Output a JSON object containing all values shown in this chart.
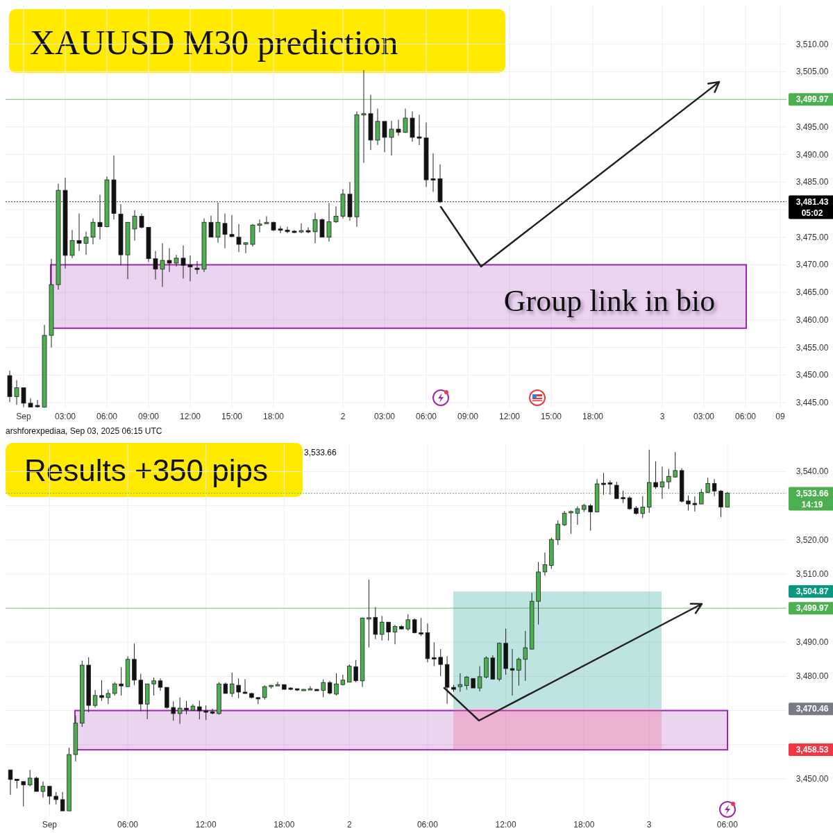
{
  "chart_data": [
    {
      "type": "candlestick",
      "title": "XAUUSD M30 prediction",
      "grid": true,
      "colors": [
        "#111111",
        "#4caf50",
        "#111111",
        "#111111",
        "#111111",
        "#4caf50",
        "#4caf50",
        "#4caf50",
        "#111111",
        "#4caf50",
        "#111111",
        "#4caf50",
        "#4caf50",
        "#111111",
        "#4caf50",
        "#111111",
        "#111111",
        "#4caf50",
        "#4caf50",
        "#111111",
        "#111111",
        "#111111",
        "#4caf50",
        "#111111",
        "#4caf50",
        "#111111",
        "#111111",
        "#111111",
        "#4caf50",
        "#111111",
        "#4caf50",
        "#111111",
        "#111111",
        "#111111",
        "#4caf50",
        "#4caf50",
        "#4caf50",
        "#4caf50",
        "#111111",
        "#111111",
        "#111111",
        "#111111",
        "#4caf50",
        "#111111",
        "#4caf50",
        "#111111",
        "#4caf50",
        "#4caf50",
        "#4caf50",
        "#111111",
        "#4caf50",
        "#4caf50",
        "#111111",
        "#4caf50",
        "#111111",
        "#4caf50",
        "#111111",
        "#4caf50",
        "#111111",
        "#111111",
        "#111111",
        "#111111",
        "#111111",
        null,
        null,
        null,
        null,
        null,
        null,
        null,
        null,
        null,
        null,
        null,
        null,
        null,
        null,
        null,
        null,
        null,
        null,
        null,
        null,
        null,
        null,
        null,
        null,
        null,
        null,
        null,
        null,
        null,
        null,
        null,
        null,
        null,
        null,
        null,
        null,
        null,
        null,
        null,
        null,
        null,
        null,
        null,
        null,
        null,
        null,
        null,
        null,
        null
      ],
      "categories": [
        null,
        null,
        "Sep",
        null,
        null,
        null,
        null,
        null,
        "03:00",
        null,
        null,
        null,
        null,
        null,
        "06:00",
        null,
        null,
        null,
        null,
        null,
        "09:00",
        null,
        null,
        null,
        null,
        null,
        "12:00",
        null,
        null,
        null,
        null,
        null,
        "15:00",
        null,
        null,
        null,
        null,
        null,
        "18:00",
        null,
        null,
        null,
        null,
        null,
        null,
        null,
        null,
        null,
        "2",
        null,
        null,
        null,
        null,
        null,
        "03:00",
        null,
        null,
        null,
        null,
        null,
        "06:00",
        null,
        null,
        null,
        null,
        null,
        "09:00",
        null,
        null,
        null,
        null,
        null,
        "12:00",
        null,
        null,
        null,
        null,
        null,
        "15:00",
        null,
        null,
        null,
        null,
        null,
        "18:00",
        null,
        null,
        null,
        null,
        null,
        null,
        null,
        null,
        null,
        "3",
        null,
        null,
        null,
        null,
        null,
        "03:00",
        null,
        null,
        null,
        null,
        null,
        "06:00",
        null,
        null,
        null,
        null,
        "09"
      ],
      "ohlc": [
        [
          3449.9,
          3450.8,
          3445.1,
          3446.1
        ],
        [
          3446.1,
          3449.1,
          3444.6,
          3447.7
        ],
        [
          3447.7,
          3447.7,
          3444.2,
          3444.9
        ],
        [
          3444.9,
          3445.8,
          3444.2,
          3444.2
        ],
        [
          3444.5,
          3445.5,
          3444.1,
          3444.4
        ],
        [
          3444.2,
          3459.1,
          3444.1,
          3457.2
        ],
        [
          3457.2,
          3471.1,
          3455.0,
          3466.4
        ],
        [
          3466.4,
          3484.7,
          3465.5,
          3483.5
        ],
        [
          3483.5,
          3485.8,
          3469.3,
          3471.7
        ],
        [
          3471.7,
          3476.3,
          3471.2,
          3474.4
        ],
        [
          3474.4,
          3479.3,
          3472.5,
          3473.9
        ],
        [
          3473.9,
          3476.0,
          3471.8,
          3475.0
        ],
        [
          3475.0,
          3478.4,
          3473.7,
          3477.7
        ],
        [
          3477.7,
          3482.7,
          3474.6,
          3476.9
        ],
        [
          3476.9,
          3486.0,
          3476.8,
          3485.4
        ],
        [
          3485.4,
          3489.8,
          3478.2,
          3479.3
        ],
        [
          3479.2,
          3481.0,
          3469.9,
          3471.8
        ],
        [
          3471.8,
          3477.7,
          3467.4,
          3477.7
        ],
        [
          3476.5,
          3479.9,
          3474.4,
          3478.8
        ],
        [
          3478.8,
          3479.3,
          3476.6,
          3476.8
        ],
        [
          3476.8,
          3476.8,
          3470.5,
          3471.1
        ],
        [
          3471.1,
          3472.5,
          3467.3,
          3469.2
        ],
        [
          3469.2,
          3473.9,
          3466.0,
          3470.8
        ],
        [
          3470.8,
          3473.0,
          3468.7,
          3470.3
        ],
        [
          3470.3,
          3471.8,
          3469.7,
          3471.2
        ],
        [
          3471.2,
          3473.5,
          3467.5,
          3469.9
        ],
        [
          3470.0,
          3471.7,
          3467.0,
          3469.6
        ],
        [
          3469.4,
          3470.7,
          3468.3,
          3469.2
        ],
        [
          3469.2,
          3478.4,
          3468.7,
          3477.7
        ],
        [
          3477.7,
          3478.9,
          3475.0,
          3475.0
        ],
        [
          3475.0,
          3481.3,
          3474.0,
          3477.7
        ],
        [
          3477.5,
          3479.3,
          3473.0,
          3475.5
        ],
        [
          3475.5,
          3479.0,
          3475.0,
          3475.1
        ],
        [
          3475.0,
          3477.4,
          3472.3,
          3473.7
        ],
        [
          3473.7,
          3474.0,
          3472.1,
          3474.0
        ],
        [
          3473.7,
          3477.4,
          3473.3,
          3477.2
        ],
        [
          3477.2,
          3478.2,
          3475.9,
          3477.4
        ],
        [
          3477.5,
          3478.8,
          3477.4,
          3477.7
        ],
        [
          3477.7,
          3477.8,
          3476.1,
          3476.3
        ],
        [
          3476.5,
          3477.0,
          3475.7,
          3476.3
        ],
        [
          3476.3,
          3476.9,
          3475.7,
          3476.0
        ],
        [
          3476.1,
          3476.3,
          3475.7,
          3476.0
        ],
        [
          3476.1,
          3477.5,
          3475.7,
          3476.2
        ],
        [
          3476.2,
          3476.8,
          3475.7,
          3476.0
        ],
        [
          3476.0,
          3479.4,
          3473.9,
          3478.2
        ],
        [
          3478.2,
          3478.4,
          3475.0,
          3475.0
        ],
        [
          3475.0,
          3481.2,
          3474.2,
          3477.8
        ],
        [
          3477.8,
          3480.6,
          3477.6,
          3478.8
        ],
        [
          3478.8,
          3483.7,
          3478.4,
          3482.8
        ],
        [
          3482.8,
          3485.0,
          3478.0,
          3478.7
        ],
        [
          3478.7,
          3497.8,
          3476.9,
          3497.2
        ],
        [
          3497.2,
          3505.3,
          3488.5,
          3497.4
        ],
        [
          3497.4,
          3500.8,
          3490.8,
          3492.6
        ],
        [
          3492.6,
          3498.3,
          3491.7,
          3496.0
        ],
        [
          3496.0,
          3496.0,
          3490.4,
          3493.1
        ],
        [
          3493.1,
          3496.1,
          3489.8,
          3494.6
        ],
        [
          3494.6,
          3496.3,
          3493.4,
          3494.0
        ],
        [
          3494.0,
          3498.3,
          3493.9,
          3496.6
        ],
        [
          3496.6,
          3497.8,
          3492.3,
          3493.1
        ],
        [
          3493.2,
          3497.2,
          3491.7,
          3493.0
        ],
        [
          3493.0,
          3495.8,
          3484.1,
          3485.4
        ],
        [
          3485.6,
          3490.2,
          3483.2,
          3485.5
        ],
        [
          3485.6,
          3488.2,
          3481.2,
          3481.4
        ],
        null,
        null,
        null,
        null,
        null,
        null,
        null,
        null,
        null,
        null,
        null,
        null,
        null,
        null,
        null,
        null,
        null,
        null,
        null,
        null,
        null,
        null,
        null,
        null,
        null,
        null,
        null,
        null,
        null,
        null,
        null,
        null,
        null,
        null,
        null,
        null,
        null,
        null,
        null,
        null,
        null,
        null,
        null,
        null,
        null,
        null,
        null,
        null,
        null
      ],
      "ylim": [
        3444,
        3517
      ],
      "yticks": [
        {
          "value": 3445,
          "label": "3,445.00"
        },
        {
          "value": 3450,
          "label": "3,450.00"
        },
        {
          "value": 3455,
          "label": "3,455.00"
        },
        {
          "value": 3460,
          "label": "3,460.00"
        },
        {
          "value": 3465,
          "label": "3,465.00"
        },
        {
          "value": 3470,
          "label": "3,470.00"
        },
        {
          "value": 3475,
          "label": "3,475.00"
        },
        {
          "value": 3480,
          "label": null
        },
        {
          "value": 3485,
          "label": "3,485.00"
        },
        {
          "value": 3490,
          "label": "3,490.00"
        },
        {
          "value": 3495,
          "label": "3,495.00"
        },
        {
          "value": 3500,
          "label": null
        },
        {
          "value": 3505,
          "label": "3,505.00"
        },
        {
          "value": 3510,
          "label": "3,510.00"
        }
      ],
      "ref_lines": [
        {
          "axis": "y",
          "value": 3499.97,
          "label": "3,499.97",
          "color": "#4caf50"
        },
        {
          "axis": "y",
          "value": 3481.43,
          "label": "3,481.43\n05:02",
          "color": "#000000",
          "line_style": "dotted"
        }
      ],
      "bands": [
        {
          "axis": "y",
          "from": 3458.5,
          "to": 3470,
          "color": "#9c27b0"
        }
      ],
      "annotations": [
        "Group link in bio",
        "arshforexpediaa, Sep 03, 2025 06:15 UTC"
      ]
    },
    {
      "type": "candlestick",
      "title": "Results +350 pips",
      "grid": true,
      "colors": [
        "#111111",
        "#111111",
        "#111111",
        "#4caf50",
        "#111111",
        "#4caf50",
        "#111111",
        "#111111",
        "#111111",
        "#4caf50",
        "#4caf50",
        "#4caf50",
        "#111111",
        "#4caf50",
        "#111111",
        "#4caf50",
        "#4caf50",
        "#111111",
        "#4caf50",
        "#111111",
        "#111111",
        "#4caf50",
        "#4caf50",
        "#111111",
        "#111111",
        "#111111",
        "#4caf50",
        "#111111",
        "#4caf50",
        "#111111",
        "#111111",
        "#111111",
        "#4caf50",
        "#111111",
        "#4caf50",
        "#111111",
        "#111111",
        "#111111",
        "#111111",
        "#4caf50",
        "#4caf50",
        "#4caf50",
        "#111111",
        "#111111",
        "#111111",
        "#4caf50",
        "#4caf50",
        "#111111",
        "#4caf50",
        "#111111",
        "#4caf50",
        "#4caf50",
        "#4caf50",
        "#111111",
        "#4caf50",
        "#4caf50",
        "#111111",
        "#4caf50",
        "#111111",
        "#4caf50",
        "#111111",
        "#4caf50",
        "#111111",
        "#111111",
        "#111111",
        "#111111",
        "#111111",
        "#111111",
        "#111111",
        "#4caf50",
        "#4caf50",
        "#111111",
        "#4caf50",
        "#4caf50",
        "#111111",
        "#4caf50",
        "#111111",
        "#111111",
        "#4caf50",
        "#4caf50",
        "#4caf50",
        "#4caf50",
        "#4caf50",
        "#4caf50",
        "#4caf50",
        "#4caf50",
        "#4caf50",
        "#4caf50",
        "#4caf50",
        "#111111",
        "#4caf50",
        "#111111",
        "#111111",
        "#111111",
        "#111111",
        "#111111",
        "#111111",
        "#4caf50",
        "#4caf50",
        "#111111",
        "#4caf50",
        "#4caf50",
        "#4caf50",
        "#111111",
        "#111111",
        "#111111",
        "#4caf50",
        "#4caf50",
        "#111111",
        "#111111",
        "#4caf50",
        null,
        null,
        null,
        null,
        null,
        null,
        null,
        null
      ],
      "categories": [
        null,
        null,
        null,
        null,
        null,
        null,
        "Sep",
        null,
        null,
        null,
        null,
        null,
        null,
        null,
        null,
        null,
        null,
        null,
        "06:00",
        null,
        null,
        null,
        null,
        null,
        null,
        null,
        null,
        null,
        null,
        null,
        "12:00",
        null,
        null,
        null,
        null,
        null,
        null,
        null,
        null,
        null,
        null,
        null,
        "18:00",
        null,
        null,
        null,
        null,
        null,
        null,
        null,
        null,
        null,
        "2",
        null,
        null,
        null,
        null,
        null,
        null,
        null,
        null,
        null,
        null,
        null,
        "06:00",
        null,
        null,
        null,
        null,
        null,
        null,
        null,
        null,
        null,
        null,
        null,
        "12:00",
        null,
        null,
        null,
        null,
        null,
        null,
        null,
        null,
        null,
        null,
        null,
        "18:00",
        null,
        null,
        null,
        null,
        null,
        null,
        null,
        null,
        null,
        "3",
        null,
        null,
        null,
        null,
        null,
        null,
        null,
        null,
        null,
        null,
        null,
        "06:00",
        null,
        null,
        null,
        null,
        null,
        null,
        null,
        null
      ],
      "ohlc": [
        [
          3452.6,
          3452.6,
          3445.3,
          3449.8
        ],
        [
          3449.9,
          3449.9,
          3447.2,
          3449.6
        ],
        [
          3449.2,
          3449.2,
          3441.9,
          3448.2
        ],
        [
          3448.2,
          3452.6,
          3447.8,
          3450.2
        ],
        [
          3450.2,
          3450.6,
          3446.3,
          3446.3
        ],
        [
          3446.3,
          3449.2,
          3444.5,
          3447.8
        ],
        [
          3447.8,
          3447.8,
          3442.5,
          3444.9
        ],
        [
          3444.9,
          3446.1,
          3442.5,
          3443.9
        ],
        [
          3443.9,
          3446.1,
          3440.6,
          3440.6
        ],
        [
          3440.6,
          3459.1,
          3440.6,
          3457.1
        ],
        [
          3457.1,
          3468.5,
          3455.1,
          3466.3
        ],
        [
          3466.3,
          3484.6,
          3465.2,
          3483.3
        ],
        [
          3483.3,
          3485.6,
          3469.5,
          3471.5
        ],
        [
          3471.5,
          3476.0,
          3470.9,
          3474.4
        ],
        [
          3474.4,
          3478.9,
          3472.8,
          3473.8
        ],
        [
          3473.8,
          3476.1,
          3471.9,
          3475.0
        ],
        [
          3475.0,
          3478.3,
          3474.4,
          3477.8
        ],
        [
          3477.8,
          3482.7,
          3474.4,
          3477.2
        ],
        [
          3477.0,
          3485.9,
          3477.0,
          3485.0
        ],
        [
          3485.0,
          3489.6,
          3477.4,
          3478.9
        ],
        [
          3478.9,
          3480.8,
          3469.8,
          3471.9
        ],
        [
          3471.9,
          3477.8,
          3467.5,
          3477.8
        ],
        [
          3477.8,
          3479.7,
          3474.4,
          3478.7
        ],
        [
          3478.7,
          3479.4,
          3475.8,
          3476.8
        ],
        [
          3476.8,
          3476.8,
          3470.5,
          3470.9
        ],
        [
          3470.9,
          3472.7,
          3467.0,
          3469.1
        ],
        [
          3469.1,
          3473.8,
          3466.1,
          3470.7
        ],
        [
          3470.7,
          3472.8,
          3468.9,
          3470.2
        ],
        [
          3470.1,
          3471.9,
          3469.9,
          3471.3
        ],
        [
          3471.1,
          3472.9,
          3467.4,
          3469.9
        ],
        [
          3469.9,
          3471.5,
          3467.2,
          3469.6
        ],
        [
          3469.6,
          3470.5,
          3468.9,
          3469.3
        ],
        [
          3469.1,
          3478.3,
          3468.8,
          3477.8
        ],
        [
          3477.8,
          3478.2,
          3475.0,
          3475.0
        ],
        [
          3475.0,
          3481.1,
          3474.0,
          3477.8
        ],
        [
          3477.4,
          3479.4,
          3473.6,
          3475.4
        ],
        [
          3475.4,
          3479.2,
          3474.9,
          3475.1
        ],
        [
          3475.0,
          3475.2,
          3473.6,
          3473.8
        ],
        [
          3473.8,
          3473.8,
          3471.9,
          3473.7
        ],
        [
          3473.8,
          3477.4,
          3473.2,
          3477.0
        ],
        [
          3477.3,
          3477.5,
          3476.4,
          3477.4
        ],
        [
          3477.6,
          3478.4,
          3477.3,
          3477.6
        ],
        [
          3477.6,
          3477.6,
          3476.2,
          3476.2
        ],
        [
          3476.6,
          3476.8,
          3476.0,
          3476.5
        ],
        [
          3476.4,
          3476.4,
          3475.7,
          3476.2
        ],
        [
          3476.2,
          3476.3,
          3476.0,
          3476.2
        ],
        [
          3476.2,
          3477.1,
          3476.0,
          3476.4
        ],
        [
          3476.2,
          3476.3,
          3476.0,
          3476.1
        ],
        [
          3475.9,
          3479.1,
          3473.9,
          3478.2
        ],
        [
          3478.2,
          3478.7,
          3474.7,
          3475.1
        ],
        [
          3474.8,
          3480.9,
          3474.4,
          3477.8
        ],
        [
          3477.6,
          3480.5,
          3477.3,
          3478.9
        ],
        [
          3478.3,
          3483.5,
          3478.3,
          3483.0
        ],
        [
          3482.8,
          3484.8,
          3478.3,
          3478.7
        ],
        [
          3478.7,
          3497.3,
          3476.9,
          3497.1
        ],
        [
          3497.1,
          3508.3,
          3488.5,
          3497.2
        ],
        [
          3497.3,
          3500.3,
          3490.9,
          3492.3
        ],
        [
          3492.3,
          3497.7,
          3490.5,
          3495.9
        ],
        [
          3495.9,
          3495.9,
          3490.5,
          3493.0
        ],
        [
          3493.0,
          3495.1,
          3489.4,
          3494.6
        ],
        [
          3494.6,
          3495.0,
          3493.7,
          3493.9
        ],
        [
          3493.9,
          3498.2,
          3493.4,
          3496.6
        ],
        [
          3496.6,
          3497.0,
          3492.6,
          3492.8
        ],
        [
          3492.8,
          3497.1,
          3491.8,
          3492.7
        ],
        [
          3492.8,
          3495.5,
          3484.1,
          3485.2
        ],
        [
          3485.5,
          3490.0,
          3483.0,
          3485.3
        ],
        [
          3485.6,
          3488.0,
          3480.1,
          3483.5
        ],
        [
          3483.5,
          3485.9,
          3472.0,
          3476.8
        ],
        [
          3476.8,
          3477.5,
          3475.5,
          3476.2
        ],
        [
          3477.0,
          3480.9,
          3475.5,
          3477.6
        ],
        [
          3477.3,
          3480.1,
          3476.1,
          3479.8
        ],
        [
          3479.4,
          3479.4,
          3476.6,
          3476.6
        ],
        [
          3476.6,
          3483.0,
          3475.6,
          3479.9
        ],
        [
          3479.8,
          3485.9,
          3479.4,
          3485.4
        ],
        [
          3485.4,
          3486.2,
          3479.1,
          3479.2
        ],
        [
          3479.2,
          3489.9,
          3478.6,
          3489.7
        ],
        [
          3489.7,
          3494.0,
          3480.5,
          3482.3
        ],
        [
          3482.3,
          3488.0,
          3474.4,
          3481.8
        ],
        [
          3481.8,
          3485.5,
          3477.3,
          3485.0
        ],
        [
          3485.0,
          3493.3,
          3478.7,
          3488.4
        ],
        [
          3488.0,
          3504.5,
          3487.9,
          3502.0
        ],
        [
          3502.0,
          3513.5,
          3495.2,
          3510.6
        ],
        [
          3510.6,
          3516.3,
          3509.5,
          3512.7
        ],
        [
          3512.5,
          3520.6,
          3511.5,
          3520.1
        ],
        [
          3520.0,
          3525.7,
          3518.5,
          3524.6
        ],
        [
          3524.4,
          3528.5,
          3524.0,
          3527.8
        ],
        [
          3528.2,
          3528.6,
          3521.8,
          3528.3
        ],
        [
          3527.8,
          3529.8,
          3524.4,
          3529.1
        ],
        [
          3528.9,
          3530.5,
          3528.2,
          3530.1
        ],
        [
          3530.0,
          3530.5,
          3522.7,
          3528.2
        ],
        [
          3528.2,
          3537.8,
          3528.0,
          3536.4
        ],
        [
          3536.6,
          3539.6,
          3533.2,
          3536.4
        ],
        [
          3536.7,
          3537.4,
          3533.2,
          3536.3
        ],
        [
          3536.0,
          3537.0,
          3532.0,
          3532.1
        ],
        [
          3532.4,
          3534.4,
          3530.8,
          3532.1
        ],
        [
          3532.3,
          3532.8,
          3528.8,
          3529.1
        ],
        [
          3529.3,
          3529.9,
          3527.4,
          3527.7
        ],
        [
          3527.7,
          3532.8,
          3526.4,
          3529.6
        ],
        [
          3529.6,
          3546.4,
          3527.9,
          3536.8
        ],
        [
          3536.8,
          3543.0,
          3534.9,
          3535.5
        ],
        [
          3535.5,
          3541.5,
          3532.0,
          3537.0
        ],
        [
          3537.0,
          3540.8,
          3534.9,
          3538.6
        ],
        [
          3538.4,
          3545.7,
          3538.2,
          3540.3
        ],
        [
          3540.3,
          3541.0,
          3530.9,
          3531.3
        ],
        [
          3531.4,
          3533.0,
          3528.6,
          3530.5
        ],
        [
          3530.7,
          3532.7,
          3528.3,
          3530.5
        ],
        [
          3530.5,
          3534.9,
          3530.5,
          3533.9
        ],
        [
          3533.9,
          3538.2,
          3533.7,
          3536.5
        ],
        [
          3536.5,
          3537.8,
          3532.8,
          3534.3
        ],
        [
          3534.3,
          3534.6,
          3526.7,
          3529.6
        ],
        [
          3529.6,
          3534.0,
          3529.6,
          3533.7
        ],
        null,
        null,
        null,
        null,
        null,
        null,
        null,
        null
      ],
      "ylim": [
        3439,
        3548
      ],
      "yticks": [
        {
          "value": 3450,
          "label": "3,450.00"
        },
        {
          "value": 3460,
          "label": null
        },
        {
          "value": 3470,
          "label": null
        },
        {
          "value": 3480,
          "label": "3,480.00"
        },
        {
          "value": 3490,
          "label": "3,490.00"
        },
        {
          "value": 3500,
          "label": null
        },
        {
          "value": 3510,
          "label": "3,510.00"
        },
        {
          "value": 3520,
          "label": "3,520.00"
        },
        {
          "value": 3530,
          "label": null
        },
        {
          "value": 3540,
          "label": "3,540.00"
        }
      ],
      "ref_lines": [
        {
          "axis": "y",
          "value": 3533.66,
          "label": "3,533.66\n14:19",
          "color": "#4caf50",
          "line_style": "dotted"
        },
        {
          "axis": "y",
          "value": 3499.97,
          "label": "3,499.97",
          "color": "#4caf50"
        }
      ],
      "bands": [
        {
          "axis": "y",
          "from": 3458.5,
          "to": 3470,
          "color": "#9c27b0"
        },
        {
          "axis": "y",
          "from": 3470.46,
          "to": 3504.87,
          "color": "#26a69a"
        },
        {
          "axis": "y",
          "from": 3458.53,
          "to": 3470.46,
          "color": "#f06292"
        }
      ],
      "annotations": [
        "3,533.66",
        "3,504.87",
        "3,470.46",
        "3,458.53"
      ]
    }
  ]
}
